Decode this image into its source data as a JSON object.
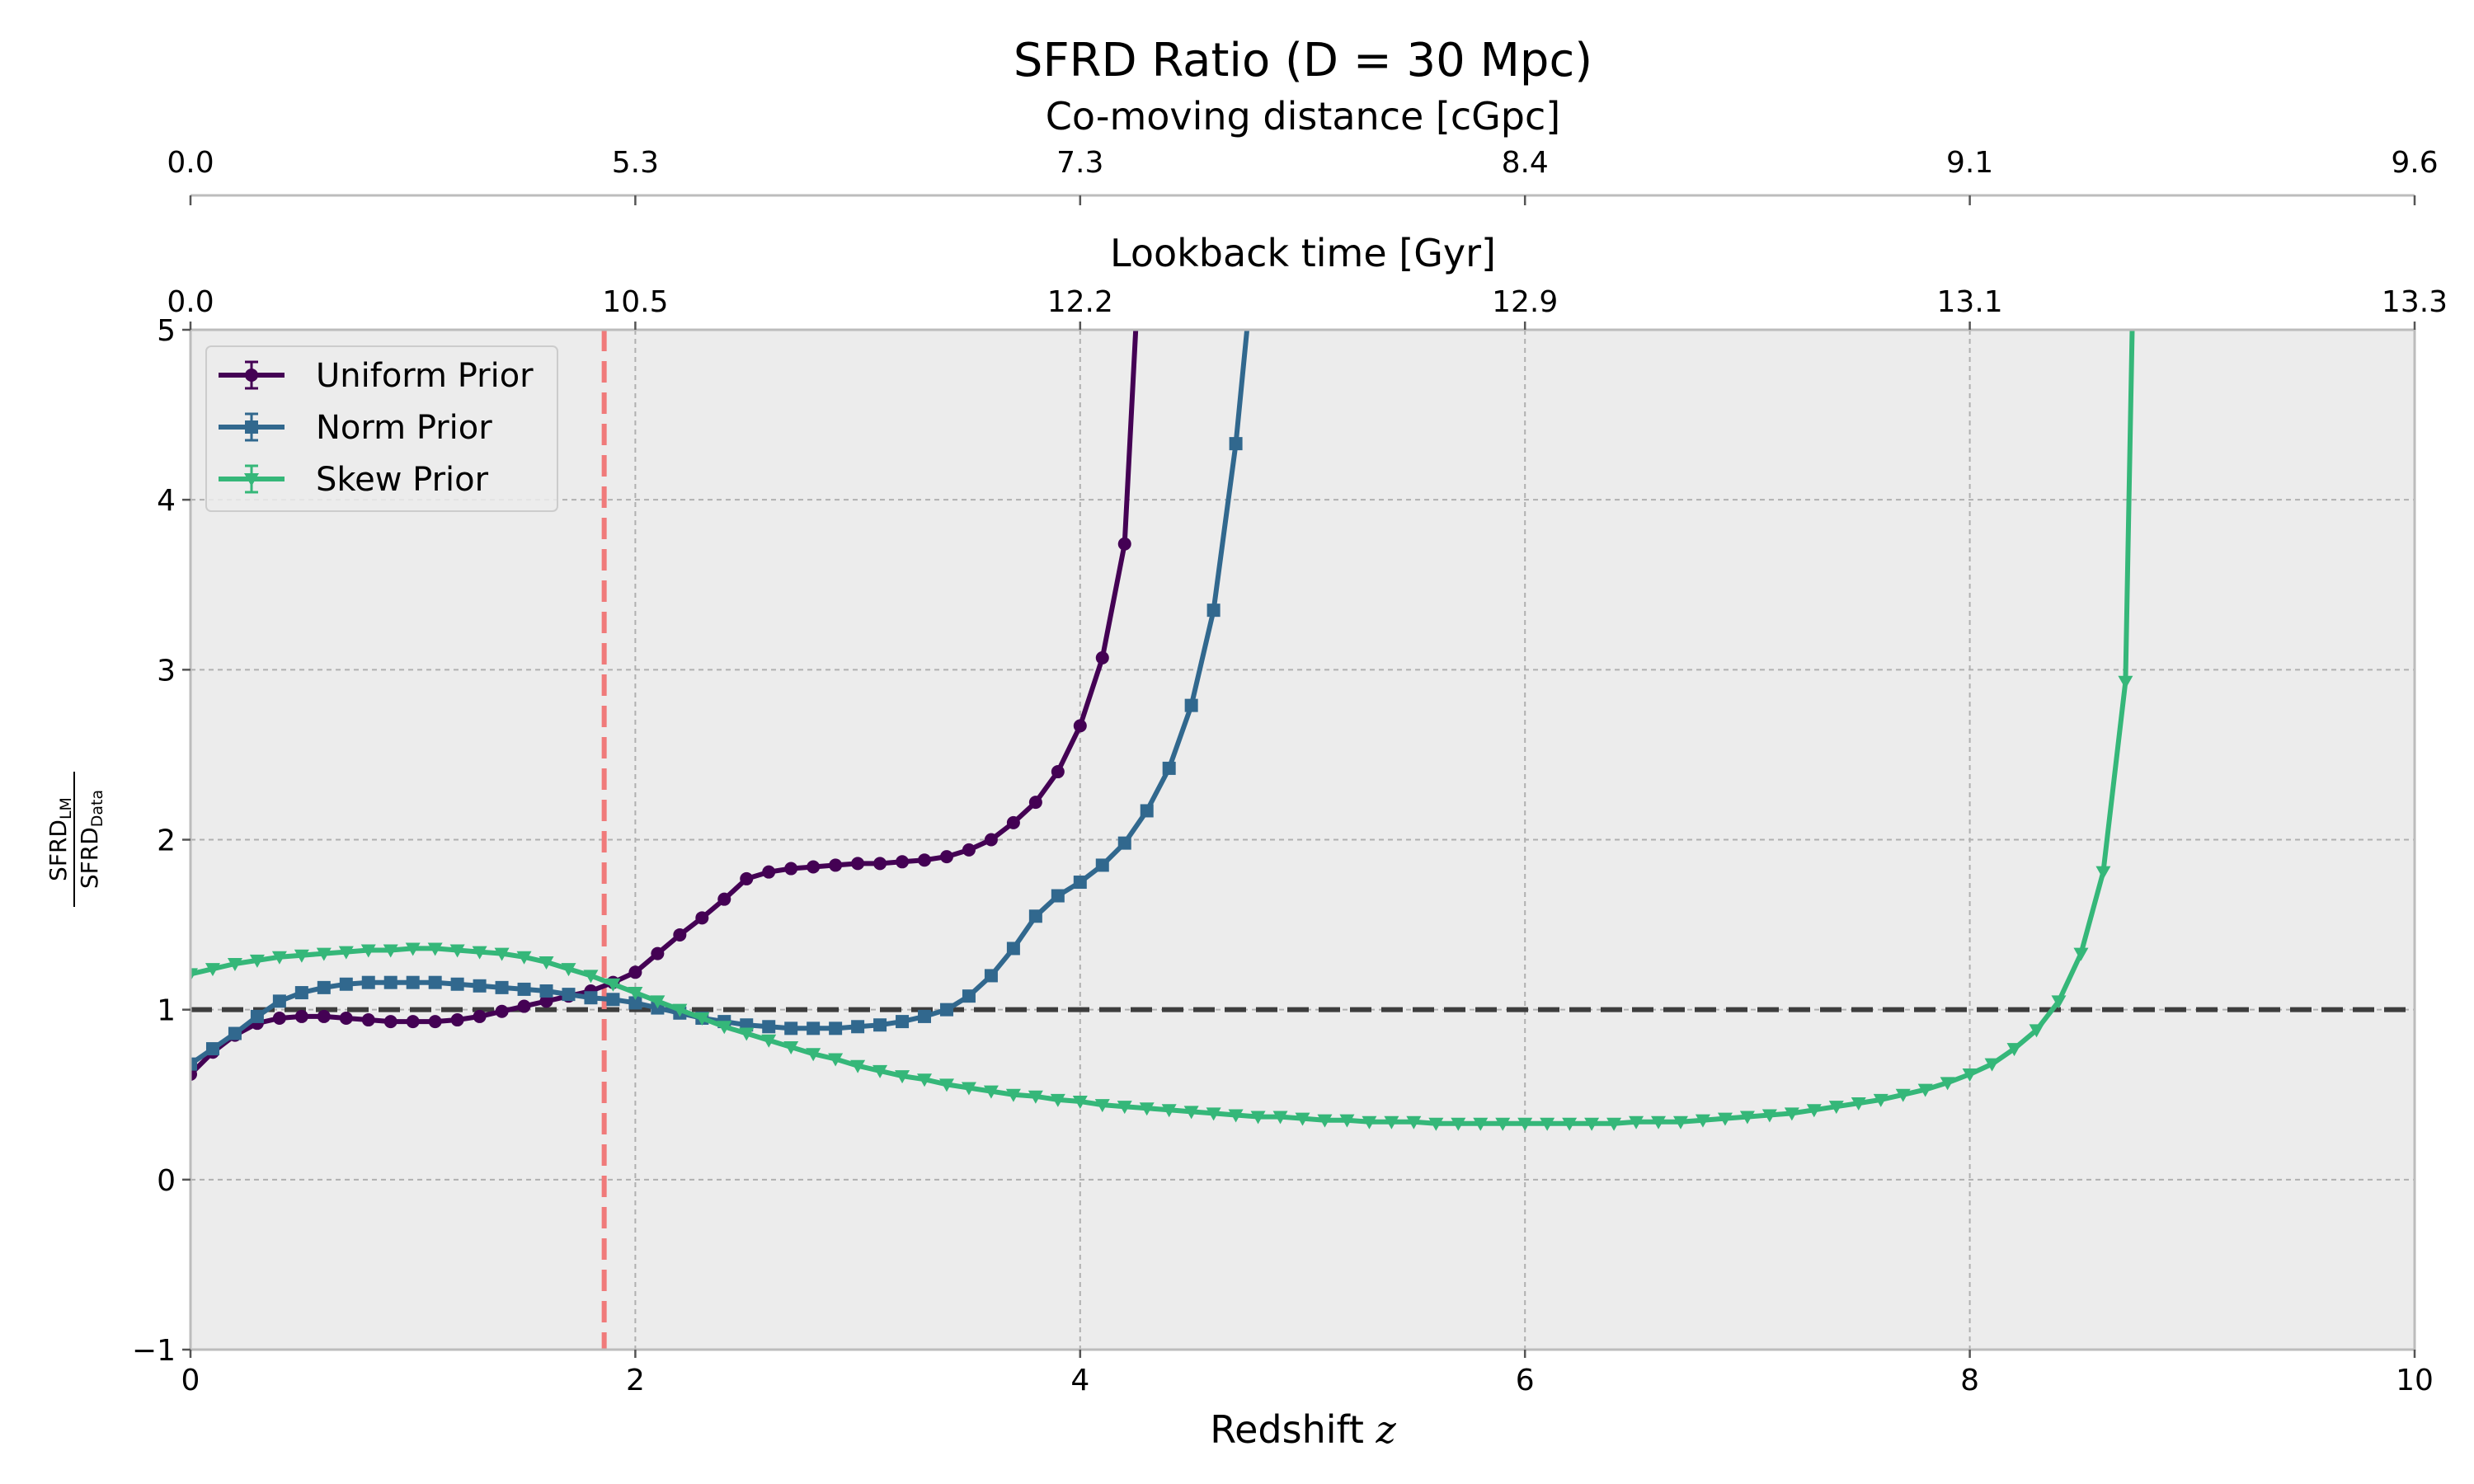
{
  "chart_data": {
    "type": "line",
    "title": "SFRD Ratio (D = 30 Mpc)",
    "xlabel": "Redshift",
    "xlabel_var": "z",
    "ylabel": "SFRD_LM / SFRD_Data",
    "ylabel_num": "SFRD",
    "ylabel_num_sub": "LM",
    "ylabel_den": "SFRD",
    "ylabel_den_sub": "Data",
    "xlim": [
      0,
      10
    ],
    "ylim": [
      -1,
      5
    ],
    "xticks": [
      "0",
      "2",
      "4",
      "6",
      "8",
      "10"
    ],
    "yticks": [
      "−1",
      "0",
      "1",
      "2",
      "3",
      "4",
      "5"
    ],
    "grid": true,
    "legend_position": "top-left",
    "top_axis_1": {
      "label": "Lookback time [Gyr]",
      "ticks": [
        "0.0",
        "10.5",
        "12.2",
        "12.9",
        "13.1",
        "13.3"
      ]
    },
    "top_axis_2": {
      "label": "Co-moving distance [cGpc]",
      "ticks": [
        "0.0",
        "5.3",
        "7.3",
        "8.4",
        "9.1",
        "9.6"
      ]
    },
    "reference_lines": [
      {
        "orientation": "horizontal",
        "value": 1,
        "color": "#3d3d3d",
        "style": "dashed"
      },
      {
        "orientation": "vertical",
        "value": 1.86,
        "color": "#f07a7a",
        "style": "dashed"
      }
    ],
    "series": [
      {
        "name": "Uniform Prior",
        "color": "#440154",
        "marker": "circle",
        "x": [
          0.0,
          0.1,
          0.2,
          0.3,
          0.4,
          0.5,
          0.6,
          0.7,
          0.8,
          0.9,
          1.0,
          1.1,
          1.2,
          1.3,
          1.4,
          1.5,
          1.6,
          1.7,
          1.8,
          1.9,
          2.0,
          2.1,
          2.2,
          2.3,
          2.4,
          2.5,
          2.6,
          2.7,
          2.8,
          2.9,
          3.0,
          3.1,
          3.2,
          3.3,
          3.4,
          3.5,
          3.6,
          3.7,
          3.8,
          3.9,
          4.0,
          4.1,
          4.2,
          4.25
        ],
        "y": [
          0.62,
          0.75,
          0.85,
          0.92,
          0.95,
          0.96,
          0.96,
          0.95,
          0.94,
          0.93,
          0.93,
          0.93,
          0.94,
          0.96,
          0.99,
          1.02,
          1.05,
          1.08,
          1.11,
          1.16,
          1.22,
          1.33,
          1.44,
          1.54,
          1.65,
          1.77,
          1.81,
          1.83,
          1.84,
          1.85,
          1.86,
          1.86,
          1.87,
          1.88,
          1.9,
          1.94,
          2.0,
          2.1,
          2.22,
          2.4,
          2.67,
          3.07,
          3.74,
          5.0
        ]
      },
      {
        "name": "Norm Prior",
        "color": "#31688e",
        "marker": "square",
        "x": [
          0.0,
          0.1,
          0.2,
          0.3,
          0.4,
          0.5,
          0.6,
          0.7,
          0.8,
          0.9,
          1.0,
          1.1,
          1.2,
          1.3,
          1.4,
          1.5,
          1.6,
          1.7,
          1.8,
          1.9,
          2.0,
          2.1,
          2.2,
          2.3,
          2.4,
          2.5,
          2.6,
          2.7,
          2.8,
          2.9,
          3.0,
          3.1,
          3.2,
          3.3,
          3.4,
          3.5,
          3.6,
          3.7,
          3.8,
          3.9,
          4.0,
          4.1,
          4.2,
          4.3,
          4.4,
          4.5,
          4.6,
          4.7,
          4.75
        ],
        "y": [
          0.68,
          0.77,
          0.86,
          0.96,
          1.05,
          1.1,
          1.13,
          1.15,
          1.16,
          1.16,
          1.16,
          1.16,
          1.15,
          1.14,
          1.13,
          1.12,
          1.11,
          1.09,
          1.07,
          1.06,
          1.04,
          1.01,
          0.98,
          0.95,
          0.93,
          0.91,
          0.9,
          0.89,
          0.89,
          0.89,
          0.9,
          0.91,
          0.93,
          0.96,
          1.0,
          1.08,
          1.2,
          1.36,
          1.55,
          1.67,
          1.75,
          1.85,
          1.98,
          2.17,
          2.42,
          2.79,
          3.35,
          4.33,
          5.0
        ]
      },
      {
        "name": "Skew Prior",
        "color": "#35b779",
        "marker": "triangle-down",
        "x": [
          0.0,
          0.1,
          0.2,
          0.3,
          0.4,
          0.5,
          0.6,
          0.7,
          0.8,
          0.9,
          1.0,
          1.1,
          1.2,
          1.3,
          1.4,
          1.5,
          1.6,
          1.7,
          1.8,
          1.9,
          2.0,
          2.1,
          2.2,
          2.3,
          2.4,
          2.5,
          2.6,
          2.7,
          2.8,
          2.9,
          3.0,
          3.1,
          3.2,
          3.3,
          3.4,
          3.5,
          3.6,
          3.7,
          3.8,
          3.9,
          4.0,
          4.1,
          4.2,
          4.3,
          4.4,
          4.5,
          4.6,
          4.7,
          4.8,
          4.9,
          5.0,
          5.1,
          5.2,
          5.3,
          5.4,
          5.5,
          5.6,
          5.7,
          5.8,
          5.9,
          6.0,
          6.1,
          6.2,
          6.3,
          6.4,
          6.5,
          6.6,
          6.7,
          6.8,
          6.9,
          7.0,
          7.1,
          7.2,
          7.3,
          7.4,
          7.5,
          7.6,
          7.7,
          7.8,
          7.9,
          8.0,
          8.1,
          8.2,
          8.3,
          8.4,
          8.5,
          8.6,
          8.7,
          8.73
        ],
        "y": [
          1.21,
          1.24,
          1.27,
          1.29,
          1.31,
          1.32,
          1.33,
          1.34,
          1.35,
          1.35,
          1.36,
          1.36,
          1.35,
          1.34,
          1.33,
          1.31,
          1.28,
          1.24,
          1.2,
          1.15,
          1.1,
          1.05,
          1.0,
          0.95,
          0.9,
          0.86,
          0.82,
          0.78,
          0.74,
          0.71,
          0.67,
          0.64,
          0.61,
          0.59,
          0.56,
          0.54,
          0.52,
          0.5,
          0.49,
          0.47,
          0.46,
          0.44,
          0.43,
          0.42,
          0.41,
          0.4,
          0.39,
          0.38,
          0.37,
          0.37,
          0.36,
          0.35,
          0.35,
          0.34,
          0.34,
          0.34,
          0.33,
          0.33,
          0.33,
          0.33,
          0.33,
          0.33,
          0.33,
          0.33,
          0.33,
          0.34,
          0.34,
          0.34,
          0.35,
          0.36,
          0.37,
          0.38,
          0.39,
          0.41,
          0.43,
          0.45,
          0.47,
          0.5,
          0.53,
          0.57,
          0.62,
          0.68,
          0.77,
          0.88,
          1.05,
          1.33,
          1.81,
          2.93,
          5.0
        ]
      }
    ]
  }
}
